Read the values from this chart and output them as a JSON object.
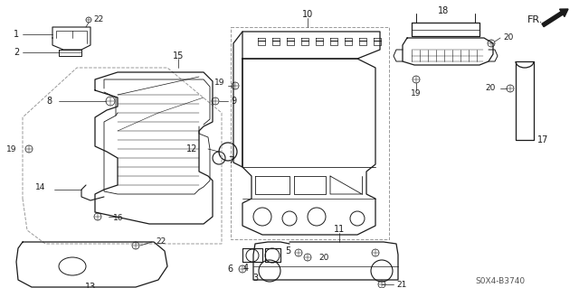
{
  "bg_color": "#ffffff",
  "line_color": "#1a1a1a",
  "diagram_code": "S0X4-B3740",
  "gray": "#808080",
  "dashed_color": "#999999"
}
